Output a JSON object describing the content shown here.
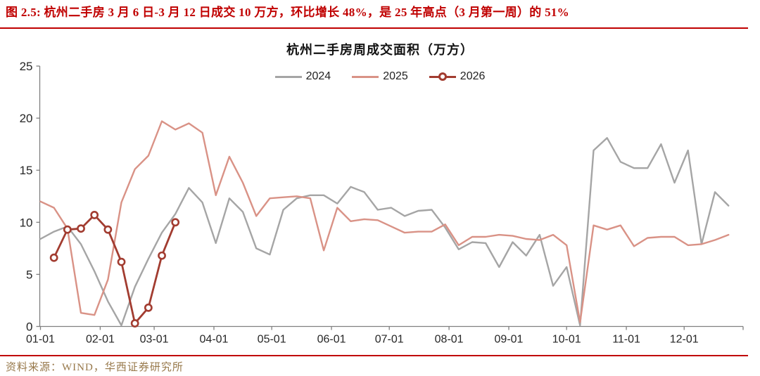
{
  "header": {
    "title": "图 2.5:  杭州二手房 3 月 6 日-3 月 12 日成交 10 万方，环比增长 48%，是 25 年高点（3 月第一周）的 51%"
  },
  "chart_data": {
    "type": "line",
    "title": "杭州二手房周成交面积（万方）",
    "ylabel": "",
    "xlabel": "",
    "ylim": [
      0,
      25
    ],
    "yticks": [
      0,
      5,
      10,
      15,
      20,
      25
    ],
    "grid": false,
    "legend_position": "top-center",
    "x_axis": {
      "tick_labels": [
        "01-01",
        "02-01",
        "03-01",
        "04-01",
        "05-01",
        "06-01",
        "07-01",
        "08-01",
        "09-01",
        "10-01",
        "11-01",
        "12-01"
      ],
      "tick_day_of_year": [
        1,
        32,
        60,
        91,
        121,
        152,
        182,
        213,
        244,
        274,
        305,
        335
      ]
    },
    "series": [
      {
        "name": "2024",
        "color": "#a5a5a5",
        "marker": "none",
        "start_day_of_year": 1,
        "step_days": 7,
        "values": [
          8.4,
          9.1,
          9.6,
          7.9,
          5.3,
          2.4,
          0.1,
          3.8,
          6.5,
          9.0,
          10.8,
          13.3,
          11.9,
          8.0,
          12.3,
          11.0,
          7.5,
          6.9,
          11.2,
          12.3,
          12.6,
          12.6,
          11.8,
          13.4,
          12.9,
          11.2,
          11.4,
          10.6,
          11.1,
          11.2,
          9.5,
          7.4,
          8.1,
          8.0,
          5.7,
          8.1,
          6.8,
          8.8,
          3.9,
          5.7,
          0.1,
          16.9,
          18.1,
          15.8,
          15.2,
          15.2,
          17.5,
          13.8,
          16.9,
          7.9,
          12.9,
          11.6
        ]
      },
      {
        "name": "2025",
        "color": "#d99286",
        "marker": "none",
        "start_day_of_year": 1,
        "step_days": 7,
        "values": [
          12.0,
          11.4,
          9.4,
          1.3,
          1.1,
          4.5,
          11.9,
          15.1,
          16.4,
          19.7,
          18.9,
          19.5,
          18.6,
          12.6,
          16.3,
          13.8,
          10.6,
          12.3,
          12.4,
          12.5,
          12.3,
          7.3,
          11.4,
          10.1,
          10.3,
          10.2,
          9.6,
          9.0,
          9.1,
          9.1,
          9.8,
          7.8,
          8.6,
          8.6,
          8.8,
          8.7,
          8.4,
          8.3,
          8.8,
          7.8,
          0.4,
          9.7,
          9.3,
          9.7,
          7.7,
          8.5,
          8.6,
          8.6,
          7.8,
          7.9,
          8.3,
          8.8
        ]
      },
      {
        "name": "2026",
        "color": "#a23c30",
        "marker": "circle",
        "start_day_of_year": 8,
        "step_days": 7,
        "values": [
          6.6,
          9.3,
          9.4,
          10.7,
          9.3,
          6.2,
          0.3,
          1.8,
          6.8,
          10.0
        ]
      }
    ]
  },
  "source": {
    "label": "资料来源：WIND，华西证券研究所"
  }
}
